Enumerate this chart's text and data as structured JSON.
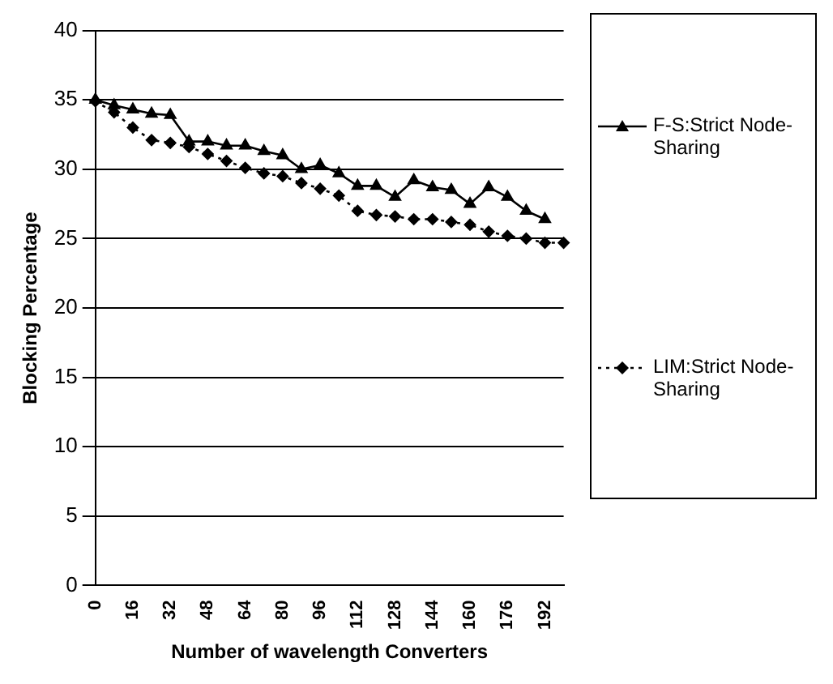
{
  "chart_data": {
    "type": "line",
    "xlabel": "Number of wavelength Converters",
    "ylabel": "Blocking Percentage",
    "categories": [
      "0",
      null,
      "16",
      null,
      "32",
      null,
      "48",
      null,
      "64",
      null,
      "80",
      null,
      "96",
      null,
      "112",
      null,
      "128",
      null,
      "144",
      null,
      "160",
      null,
      "176",
      null,
      "192",
      null
    ],
    "series": [
      {
        "name": "F-S:Strict Node-Sharing",
        "color": "#000000",
        "marker": "triangle",
        "line_style": "solid",
        "values": [
          35.0,
          34.6,
          34.3,
          34.0,
          33.9,
          32.0,
          32.0,
          31.7,
          31.7,
          31.3,
          31.0,
          30.0,
          30.3,
          29.7,
          28.8,
          28.8,
          28.0,
          29.2,
          28.7,
          28.5,
          27.5,
          28.7,
          28.0,
          27.0,
          26.4,
          null
        ]
      },
      {
        "name": "LIM:Strict Node-Sharing",
        "color": "#000000",
        "marker": "diamond",
        "line_style": "dotted",
        "values": [
          34.9,
          34.1,
          33.0,
          32.1,
          31.9,
          31.6,
          31.1,
          30.6,
          30.1,
          29.7,
          29.5,
          29.0,
          28.6,
          28.1,
          27.0,
          26.7,
          26.6,
          26.4,
          26.4,
          26.2,
          26.0,
          25.5,
          25.2,
          25.0,
          24.7,
          24.7
        ]
      }
    ],
    "ylim": [
      0,
      40
    ],
    "yticks": [
      0,
      5,
      10,
      15,
      20,
      25,
      30,
      35,
      40
    ],
    "grid": "y",
    "legend": "right"
  }
}
